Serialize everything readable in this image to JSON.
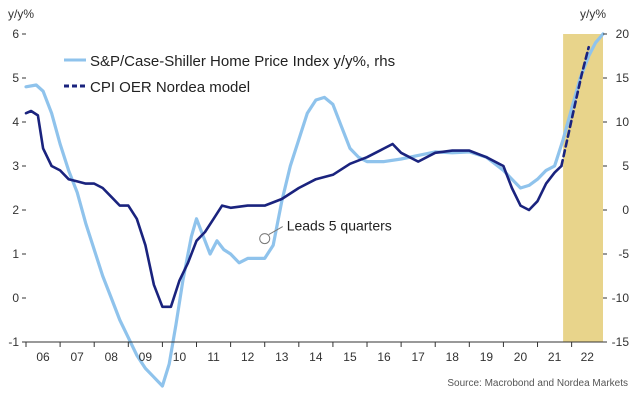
{
  "chart_data": {
    "type": "line",
    "left_axis_unit": "y/y%",
    "right_axis_unit": "y/y%",
    "left_ylim": [
      -1,
      6
    ],
    "right_ylim": [
      -15,
      20
    ],
    "left_ticks": [
      6,
      5,
      4,
      3,
      2,
      1,
      0,
      -1
    ],
    "right_ticks": [
      20,
      15,
      10,
      5,
      0,
      -5,
      -10,
      -15
    ],
    "x_range": [
      2006.0,
      2022.92
    ],
    "x_ticks": [
      {
        "label": "06",
        "year": 2006.0
      },
      {
        "label": "07",
        "year": 2007.0
      },
      {
        "label": "08",
        "year": 2008.0
      },
      {
        "label": "09",
        "year": 2009.0
      },
      {
        "label": "10",
        "year": 2010.0
      },
      {
        "label": "11",
        "year": 2011.0
      },
      {
        "label": "12",
        "year": 2012.0
      },
      {
        "label": "13",
        "year": 2013.0
      },
      {
        "label": "14",
        "year": 2014.0
      },
      {
        "label": "15",
        "year": 2015.0
      },
      {
        "label": "16",
        "year": 2016.0
      },
      {
        "label": "17",
        "year": 2017.0
      },
      {
        "label": "18",
        "year": 2018.0
      },
      {
        "label": "19",
        "year": 2019.0
      },
      {
        "label": "20",
        "year": 2020.0
      },
      {
        "label": "21",
        "year": 2021.0
      },
      {
        "label": "22",
        "year": 2022.0
      }
    ],
    "highlight": {
      "from": 2021.75,
      "to": 2022.92,
      "color": "#e8d48b"
    },
    "grid": false,
    "legend_position": "top-left",
    "series": [
      {
        "name": "S&P/Case-Shiller Home Price Index y/y%, rhs",
        "axis": "right",
        "color": "#8fc3ec",
        "style": "solid",
        "points": [
          [
            2006.0,
            14.0
          ],
          [
            2006.3,
            14.2
          ],
          [
            2006.5,
            13.5
          ],
          [
            2006.75,
            11.0
          ],
          [
            2007.0,
            7.5
          ],
          [
            2007.25,
            4.5
          ],
          [
            2007.5,
            2.0
          ],
          [
            2007.75,
            -1.5
          ],
          [
            2008.0,
            -4.5
          ],
          [
            2008.25,
            -7.5
          ],
          [
            2008.5,
            -10.0
          ],
          [
            2008.75,
            -12.5
          ],
          [
            2009.0,
            -14.5
          ],
          [
            2009.25,
            -16.5
          ],
          [
            2009.5,
            -18.0
          ],
          [
            2009.75,
            -19.0
          ],
          [
            2010.0,
            -20.0
          ],
          [
            2010.2,
            -17.5
          ],
          [
            2010.4,
            -13.0
          ],
          [
            2010.6,
            -8.0
          ],
          [
            2010.85,
            -3.0
          ],
          [
            2011.0,
            -1.0
          ],
          [
            2011.2,
            -3.0
          ],
          [
            2011.4,
            -5.0
          ],
          [
            2011.6,
            -3.5
          ],
          [
            2011.8,
            -4.5
          ],
          [
            2012.0,
            -5.0
          ],
          [
            2012.25,
            -6.0
          ],
          [
            2012.5,
            -5.5
          ],
          [
            2012.75,
            -5.5
          ],
          [
            2013.0,
            -5.5
          ],
          [
            2013.25,
            -4.0
          ],
          [
            2013.5,
            1.0
          ],
          [
            2013.75,
            5.0
          ],
          [
            2014.0,
            8.0
          ],
          [
            2014.25,
            11.0
          ],
          [
            2014.5,
            12.5
          ],
          [
            2014.75,
            12.8
          ],
          [
            2015.0,
            12.0
          ],
          [
            2015.25,
            9.5
          ],
          [
            2015.5,
            7.0
          ],
          [
            2015.75,
            6.0
          ],
          [
            2016.0,
            5.5
          ],
          [
            2016.5,
            5.5
          ],
          [
            2017.0,
            5.8
          ],
          [
            2017.5,
            6.2
          ],
          [
            2018.0,
            6.6
          ],
          [
            2018.5,
            6.5
          ],
          [
            2019.0,
            6.6
          ],
          [
            2019.5,
            6.0
          ],
          [
            2020.0,
            4.5
          ],
          [
            2020.25,
            3.5
          ],
          [
            2020.5,
            2.5
          ],
          [
            2020.75,
            2.8
          ],
          [
            2021.0,
            3.5
          ],
          [
            2021.25,
            4.5
          ],
          [
            2021.5,
            5.0
          ],
          [
            2021.75,
            8.0
          ],
          [
            2022.0,
            11.5
          ],
          [
            2022.25,
            15.0
          ],
          [
            2022.5,
            17.5
          ],
          [
            2022.7,
            19.0
          ],
          [
            2022.92,
            20.0
          ]
        ]
      },
      {
        "name": "CPI OER Nordea model",
        "axis": "left",
        "color": "#1a237e",
        "style": "solid",
        "points": [
          [
            2006.0,
            4.2
          ],
          [
            2006.15,
            4.25
          ],
          [
            2006.35,
            4.15
          ],
          [
            2006.5,
            3.4
          ],
          [
            2006.75,
            3.0
          ],
          [
            2007.0,
            2.9
          ],
          [
            2007.25,
            2.7
          ],
          [
            2007.5,
            2.65
          ],
          [
            2007.75,
            2.6
          ],
          [
            2008.0,
            2.6
          ],
          [
            2008.25,
            2.5
          ],
          [
            2008.5,
            2.3
          ],
          [
            2008.75,
            2.1
          ],
          [
            2009.0,
            2.1
          ],
          [
            2009.25,
            1.8
          ],
          [
            2009.5,
            1.2
          ],
          [
            2009.75,
            0.3
          ],
          [
            2010.0,
            -0.2
          ],
          [
            2010.25,
            -0.2
          ],
          [
            2010.5,
            0.4
          ],
          [
            2010.75,
            0.8
          ],
          [
            2011.0,
            1.3
          ],
          [
            2011.25,
            1.5
          ],
          [
            2011.5,
            1.8
          ],
          [
            2011.75,
            2.1
          ],
          [
            2012.0,
            2.05
          ],
          [
            2012.5,
            2.1
          ],
          [
            2013.0,
            2.1
          ],
          [
            2013.5,
            2.25
          ],
          [
            2014.0,
            2.5
          ],
          [
            2014.5,
            2.7
          ],
          [
            2015.0,
            2.8
          ],
          [
            2015.5,
            3.05
          ],
          [
            2016.0,
            3.2
          ],
          [
            2016.5,
            3.4
          ],
          [
            2016.75,
            3.5
          ],
          [
            2017.0,
            3.3
          ],
          [
            2017.5,
            3.1
          ],
          [
            2018.0,
            3.3
          ],
          [
            2018.5,
            3.35
          ],
          [
            2019.0,
            3.35
          ],
          [
            2019.5,
            3.2
          ],
          [
            2020.0,
            3.0
          ],
          [
            2020.25,
            2.5
          ],
          [
            2020.5,
            2.1
          ],
          [
            2020.75,
            2.0
          ],
          [
            2021.0,
            2.2
          ],
          [
            2021.25,
            2.6
          ],
          [
            2021.5,
            2.85
          ],
          [
            2021.7,
            3.0
          ]
        ]
      },
      {
        "name": "CPI OER Nordea model (projection)",
        "axis": "left",
        "color": "#1a237e",
        "style": "dashed",
        "points": [
          [
            2021.7,
            3.0
          ],
          [
            2021.9,
            3.7
          ],
          [
            2022.1,
            4.4
          ],
          [
            2022.3,
            5.1
          ],
          [
            2022.5,
            5.7
          ]
        ]
      }
    ],
    "legend": [
      {
        "label": "S&P/Case-Shiller Home Price Index y/y%, rhs",
        "color": "#8fc3ec",
        "style": "solid"
      },
      {
        "label": "CPI OER Nordea model",
        "color": "#1a237e",
        "style": "dashed"
      }
    ],
    "annotation": {
      "text": "Leads 5 quarters",
      "year": 2013.0,
      "left_value": 1.35
    },
    "source": "Source: Macrobond and Nordea Markets"
  }
}
